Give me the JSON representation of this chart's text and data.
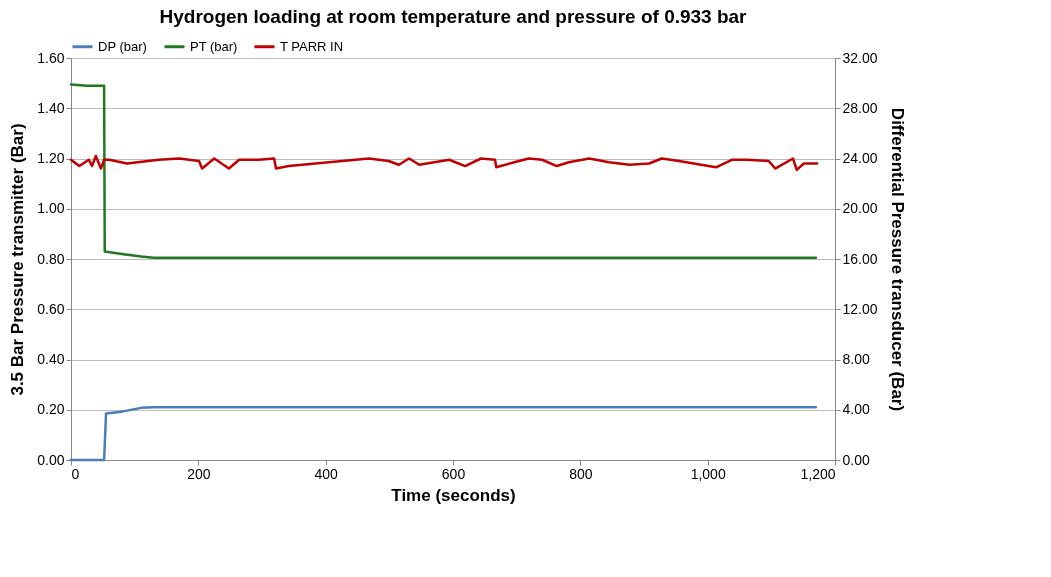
{
  "chart_data": {
    "type": "line",
    "title": "Hydrogen loading at room temperature and pressure of 0.933 bar",
    "xlabel": "Time (seconds)",
    "ylabel": "3.5 Bar Pressure transmitter (Bar)",
    "y2label": "Differential Pressure transducer (Bar)",
    "xlim": [
      0,
      1200
    ],
    "xticks": [
      0,
      200,
      400,
      600,
      800,
      {
        "value": 1000,
        "label": "1,000"
      },
      {
        "value": 1200,
        "label": "1,200"
      }
    ],
    "ylim": [
      0,
      1.6
    ],
    "yticks": [
      {
        "value": 0,
        "label": "0.00"
      },
      {
        "value": 0.2,
        "label": "0.20"
      },
      {
        "value": 0.4,
        "label": "0.40"
      },
      {
        "value": 0.6,
        "label": "0.60"
      },
      {
        "value": 0.8,
        "label": "0.80"
      },
      {
        "value": 1,
        "label": "1.00"
      },
      {
        "value": 1.2,
        "label": "1.20"
      },
      {
        "value": 1.4,
        "label": "1.40"
      },
      {
        "value": 1.6,
        "label": "1.60"
      }
    ],
    "y2lim": [
      0,
      32
    ],
    "y2ticks": [
      {
        "value": 0,
        "label": "0.00"
      },
      {
        "value": 4,
        "label": "4.00"
      },
      {
        "value": 8,
        "label": "8.00"
      },
      {
        "value": 12,
        "label": "12.00"
      },
      {
        "value": 16,
        "label": "16.00"
      },
      {
        "value": 20,
        "label": "20.00"
      },
      {
        "value": 24,
        "label": "24.00"
      },
      {
        "value": 28,
        "label": "28.00"
      },
      {
        "value": 32,
        "label": "32.00"
      }
    ],
    "grid": "y",
    "legend": "top",
    "marker": "none",
    "line_style": "solid",
    "series": [
      {
        "name": "DP (bar)",
        "color": "#4a7ebb",
        "axis": "y2",
        "x": [
          0,
          52,
          55,
          80,
          110,
          130,
          1170
        ],
        "values": [
          0,
          0,
          3.7,
          3.85,
          4.15,
          4.2,
          4.2
        ]
      },
      {
        "name": "PT (bar)",
        "color": "#1f7a1f",
        "x": [
          0,
          25,
          52,
          53,
          80,
          110,
          130,
          1170
        ],
        "values": [
          1.495,
          1.49,
          1.49,
          0.83,
          0.82,
          0.81,
          0.805,
          0.805
        ]
      },
      {
        "name": "T PARR IN",
        "color": "#c00000",
        "axis": "y2",
        "x": [
          0,
          13,
          28,
          33,
          39,
          47,
          52,
          60,
          88,
          138,
          170,
          201,
          206,
          225,
          248,
          264,
          295,
          319,
          322,
          342,
          405,
          468,
          499,
          515,
          531,
          547,
          594,
          619,
          644,
          666,
          668,
          696,
          719,
          740,
          763,
          782,
          814,
          845,
          877,
          908,
          928,
          955,
          1013,
          1038,
          1062,
          1096,
          1106,
          1134,
          1140,
          1151,
          1172
        ],
        "values": [
          23.9,
          23.4,
          23.9,
          23.4,
          24.2,
          23.2,
          23.9,
          23.9,
          23.6,
          23.9,
          24.0,
          23.8,
          23.2,
          24.0,
          23.2,
          23.9,
          23.9,
          24.0,
          23.2,
          23.4,
          23.7,
          24.0,
          23.8,
          23.5,
          24.0,
          23.5,
          23.9,
          23.4,
          24.0,
          23.9,
          23.3,
          23.7,
          24.0,
          23.9,
          23.4,
          23.7,
          24.0,
          23.7,
          23.5,
          23.6,
          24.0,
          23.8,
          23.3,
          23.9,
          23.9,
          23.8,
          23.2,
          24.0,
          23.1,
          23.6,
          23.6
        ]
      }
    ]
  }
}
